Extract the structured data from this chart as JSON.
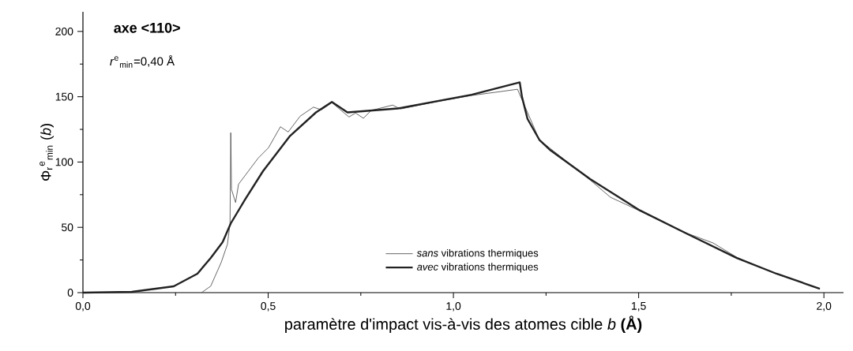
{
  "chart_data": {
    "type": "line",
    "title": "axe <110>",
    "annotations": [
      "*r*$^{e}$$_{min}$=0,40 Å"
    ],
    "xlabel": "paramètre d'impact vis-à-vis des atomes cible *b* **(Å)**",
    "ylabel": "Φ$_{r}$$^{e}$$_{min}$ (*b*)",
    "xlim": [
      0,
      2.053
    ],
    "ylim": [
      0,
      215
    ],
    "xticks": [
      {
        "value": 0,
        "label": "0,0"
      },
      {
        "value": 0.25,
        "label": null
      },
      {
        "value": 0.5,
        "label": "0,5"
      },
      {
        "value": 0.75,
        "label": null
      },
      {
        "value": 1.0,
        "label": "1,0"
      },
      {
        "value": 1.25,
        "label": null
      },
      {
        "value": 1.5,
        "label": "1,5"
      },
      {
        "value": 1.75,
        "label": null
      },
      {
        "value": 2.0,
        "label": "2,0"
      }
    ],
    "yticks": [
      0,
      {
        "value": 25,
        "label": null
      },
      50,
      {
        "value": 75,
        "label": null
      },
      100,
      {
        "value": 125,
        "label": null
      },
      150,
      {
        "value": 175,
        "label": null
      },
      200
    ],
    "legend": "bottom",
    "grid": false,
    "marker": "none",
    "series": [
      {
        "name": "*sans* vibrations thermiques",
        "color": "#555555",
        "x": [
          0.32,
          0.345,
          0.373,
          0.39,
          0.397,
          0.399,
          0.401,
          0.412,
          0.42,
          0.473,
          0.501,
          0.533,
          0.554,
          0.586,
          0.622,
          0.644,
          0.672,
          0.718,
          0.736,
          0.757,
          0.778,
          0.836,
          0.857,
          0.95,
          1.05,
          1.173,
          1.18,
          1.232,
          1.37,
          1.424,
          1.5,
          1.63,
          1.701,
          1.765,
          1.87,
          1.989
        ],
        "values": [
          0,
          5,
          23,
          37,
          53,
          122.5,
          79,
          69,
          83,
          103,
          111,
          127,
          123,
          135,
          142,
          140,
          145.5,
          134.5,
          137.5,
          133.5,
          139.5,
          143.6,
          140.6,
          146,
          151,
          155.7,
          151,
          117,
          86,
          73,
          63,
          45.5,
          38,
          27,
          14.5,
          3
        ]
      },
      {
        "name": "*avec* vibrations thermiques",
        "color": "#222222",
        "x": [
          0,
          0.132,
          0.245,
          0.309,
          0.345,
          0.377,
          0.399,
          0.437,
          0.486,
          0.559,
          0.629,
          0.672,
          0.714,
          0.85,
          1.049,
          1.179,
          1.185,
          1.2,
          1.232,
          1.262,
          1.369,
          1.503,
          1.631,
          1.765,
          1.872,
          1.989
        ],
        "values": [
          0,
          0.6,
          4.8,
          14.5,
          26.6,
          38.7,
          53,
          71,
          93,
          120,
          138,
          146,
          138,
          141,
          151.5,
          161,
          150,
          133,
          117,
          109,
          87,
          63,
          45,
          26.5,
          14.5,
          3
        ]
      }
    ]
  }
}
